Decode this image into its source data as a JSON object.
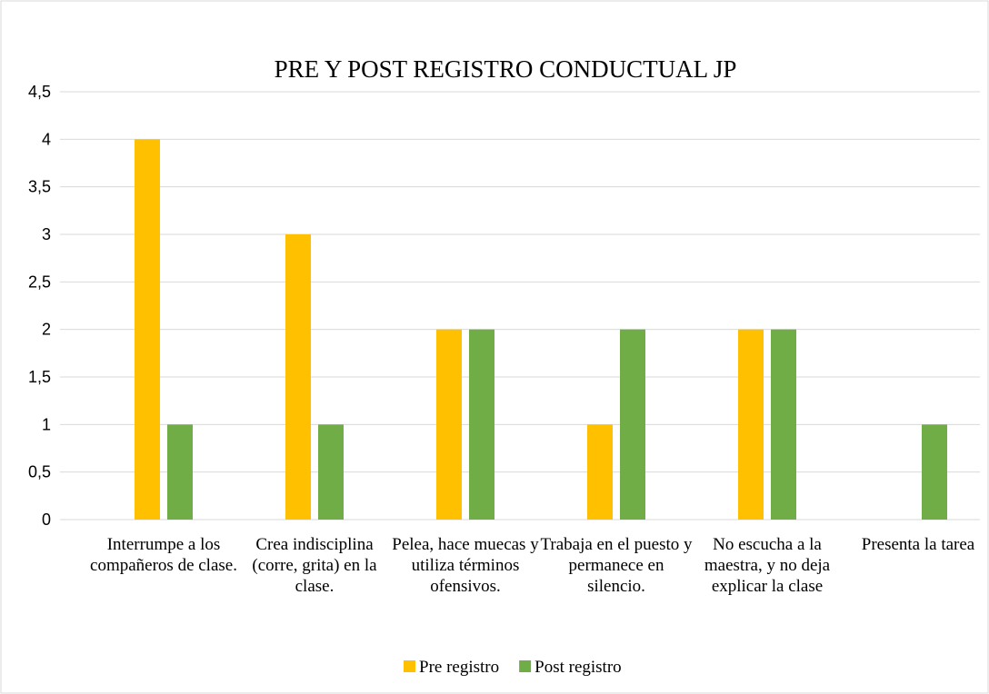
{
  "chart_data": {
    "type": "bar",
    "title": "PRE Y POST REGISTRO CONDUCTUAL JP",
    "categories": [
      "Interrumpe a los compañeros de clase.",
      "Crea indisciplina (corre, grita) en la clase.",
      "Pelea, hace muecas y utiliza términos ofensivos.",
      "Trabaja en el puesto y permanece en silencio.",
      "No escucha a la maestra, y no deja explicar la clase",
      "Presenta la tarea"
    ],
    "series": [
      {
        "name": "Pre registro",
        "color": "#ffc000",
        "values": [
          4,
          3,
          2,
          1,
          2,
          0
        ]
      },
      {
        "name": "Post registro",
        "color": "#70ad47",
        "values": [
          1,
          1,
          2,
          2,
          2,
          1
        ]
      }
    ],
    "ylim": [
      0,
      4.5
    ],
    "yticks": [
      0,
      {
        "value": 0.5,
        "label": "0,5"
      },
      1,
      {
        "value": 1.5,
        "label": "1,5"
      },
      2,
      {
        "value": 2.5,
        "label": "2,5"
      },
      3,
      {
        "value": 3.5,
        "label": "3,5"
      },
      4,
      {
        "value": 4.5,
        "label": "4,5"
      }
    ],
    "grid": true,
    "legend": "bottom"
  }
}
